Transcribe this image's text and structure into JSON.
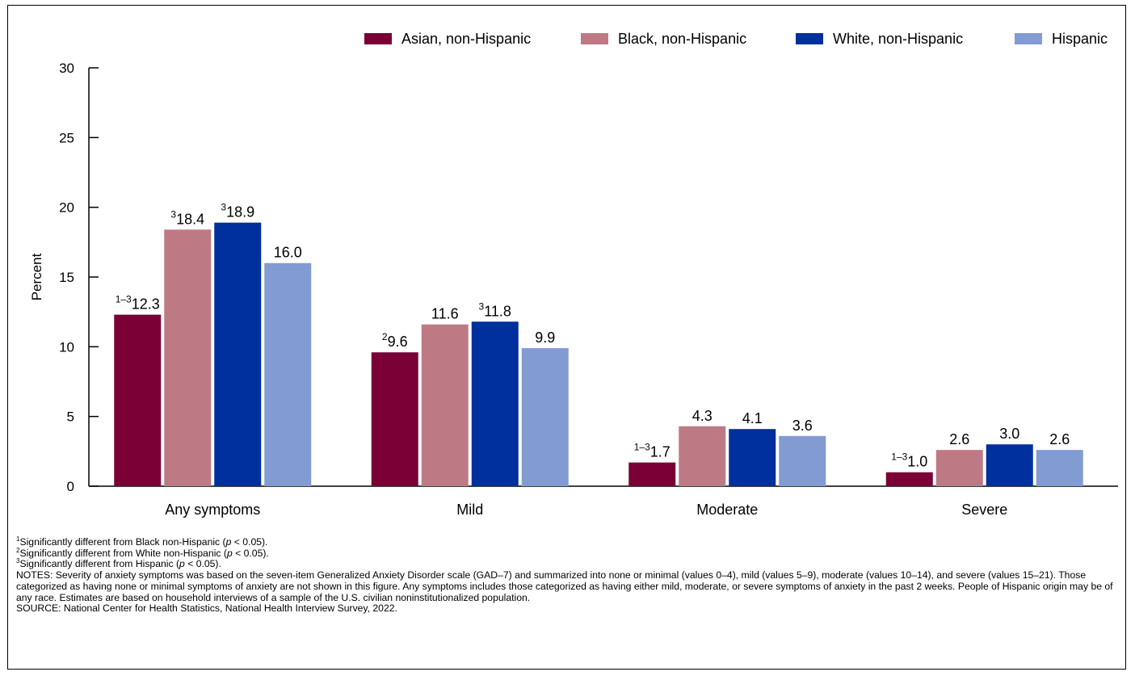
{
  "chart_data": {
    "type": "bar",
    "ylabel": "Percent",
    "xlabel": "",
    "ylim": [
      0,
      30
    ],
    "yticks": [
      0,
      5,
      10,
      15,
      20,
      25,
      30
    ],
    "categories": [
      "Any symptoms",
      "Mild",
      "Moderate",
      "Severe"
    ],
    "legend_position": "top-right",
    "grid": false,
    "series": [
      {
        "name": "Asian, non-Hispanic",
        "color": "#7b0036",
        "values": [
          12.3,
          9.6,
          1.7,
          1.0
        ],
        "labels": [
          "12.3",
          "9.6",
          "1.7",
          "1.0"
        ],
        "superscripts": [
          "1–3",
          "2",
          "1–3",
          "1–3"
        ]
      },
      {
        "name": "Black, non-Hispanic",
        "color": "#be7a84",
        "values": [
          18.4,
          11.6,
          4.3,
          2.6
        ],
        "labels": [
          "18.4",
          "11.6",
          "4.3",
          "2.6"
        ],
        "superscripts": [
          "3",
          "",
          "",
          ""
        ]
      },
      {
        "name": "White, non-Hispanic",
        "color": "#002f9e",
        "values": [
          18.9,
          11.8,
          4.1,
          3.0
        ],
        "labels": [
          "18.9",
          "11.8",
          "4.1",
          "3.0"
        ],
        "superscripts": [
          "3",
          "3",
          "",
          ""
        ]
      },
      {
        "name": "Hispanic",
        "color": "#829bd2",
        "values": [
          16.0,
          9.9,
          3.6,
          2.6
        ],
        "labels": [
          "16.0",
          "9.9",
          "3.6",
          "2.6"
        ],
        "superscripts": [
          "",
          "",
          "",
          ""
        ]
      }
    ]
  },
  "footnotes": {
    "fn1": {
      "mark": "1",
      "before": "Significantly different from Black non-Hispanic (",
      "p": "p",
      "after": " < 0.05)."
    },
    "fn2": {
      "mark": "2",
      "before": "Significantly different from White non-Hispanic (",
      "p": "p",
      "after": " < 0.05)."
    },
    "fn3": {
      "mark": "3",
      "before": "Significantly different from Hispanic (",
      "p": "p",
      "after": " < 0.05)."
    },
    "notes": "NOTES: Severity of anxiety symptoms was based on the seven-item Generalized Anxiety Disorder scale (GAD–7) and summarized into none or minimal (values 0–4), mild (values 5–9), moderate (values 10–14), and severe (values 15–21). Those categorized as having none or minimal symptoms of anxiety are not shown in this figure. Any symptoms includes those categorized as having either mild, moderate, or severe symptoms of anxiety in the past 2 weeks. People of Hispanic origin may be of any race. Estimates are based on household interviews of a sample of the U.S. civilian noninstitutionalized population.",
    "source": "SOURCE: National Center for Health Statistics, National Health Interview Survey, 2022."
  }
}
